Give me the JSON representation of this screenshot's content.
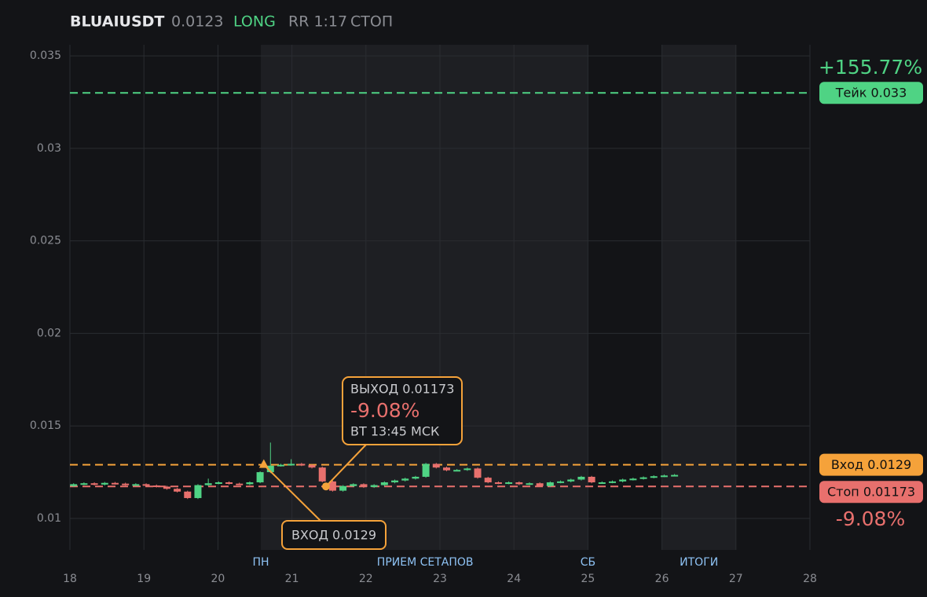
{
  "header": {
    "symbol": "BLUAIUSDT",
    "price": "0.0123",
    "side": "LONG",
    "rr": "RR 1:17",
    "status": "СТОП"
  },
  "chart_data": {
    "type": "candlestick",
    "xlim": [
      18,
      28
    ],
    "xticks": [
      18,
      19,
      20,
      21,
      22,
      23,
      24,
      25,
      26,
      27,
      28
    ],
    "ylim": [
      0.0083,
      0.0356
    ],
    "yticks": [
      0.01,
      0.015,
      0.02,
      0.025,
      0.03,
      0.035
    ],
    "grid": true,
    "shaded": [
      [
        20.58,
        25
      ],
      [
        26,
        27
      ]
    ],
    "sessions": [
      {
        "x": 20.58,
        "label": "ПН"
      },
      {
        "x": 22.8,
        "label": "ПРИЕМ СЕТАПОВ"
      },
      {
        "x": 25,
        "label": "СБ"
      },
      {
        "x": 26.5,
        "label": "ИТОГИ"
      }
    ],
    "up_color": "#4fd384",
    "down_color": "#e8706d",
    "x": [
      18.05,
      18.19,
      18.33,
      18.47,
      18.61,
      18.75,
      18.89,
      19.03,
      19.17,
      19.31,
      19.45,
      19.59,
      19.73,
      19.87,
      20.01,
      20.15,
      20.29,
      20.43,
      20.57,
      20.71,
      20.85,
      20.99,
      21.13,
      21.27,
      21.41,
      21.55,
      21.69,
      21.83,
      21.97,
      22.11,
      22.25,
      22.39,
      22.53,
      22.67,
      22.81,
      22.95,
      23.09,
      23.23,
      23.37,
      23.51,
      23.65,
      23.79,
      23.93,
      24.07,
      24.21,
      24.35,
      24.49,
      24.63,
      24.77,
      24.91,
      25.05,
      25.19,
      25.33,
      25.47,
      25.61,
      25.75,
      25.89,
      26.03,
      26.17
    ],
    "open": [
      0.01175,
      0.01185,
      0.0119,
      0.01183,
      0.01192,
      0.01188,
      0.01182,
      0.01185,
      0.01178,
      0.01172,
      0.0116,
      0.01145,
      0.0111,
      0.0118,
      0.0119,
      0.01195,
      0.01188,
      0.01185,
      0.01195,
      0.0125,
      0.01285,
      0.0129,
      0.01295,
      0.01288,
      0.01275,
      0.012,
      0.0115,
      0.01175,
      0.01185,
      0.0117,
      0.0118,
      0.01195,
      0.01205,
      0.01215,
      0.01225,
      0.01295,
      0.01275,
      0.0126,
      0.01262,
      0.0127,
      0.0122,
      0.01195,
      0.0119,
      0.01195,
      0.01185,
      0.0119,
      0.01175,
      0.01195,
      0.012,
      0.0121,
      0.01225,
      0.01195,
      0.01195,
      0.012,
      0.0121,
      0.01215,
      0.01222,
      0.01228,
      0.01232
    ],
    "high": [
      0.0119,
      0.01195,
      0.01195,
      0.01197,
      0.01197,
      0.01193,
      0.0119,
      0.0119,
      0.01183,
      0.01177,
      0.01165,
      0.0115,
      0.01185,
      0.01215,
      0.012,
      0.012,
      0.01193,
      0.012,
      0.01255,
      0.0141,
      0.01295,
      0.0132,
      0.013,
      0.01293,
      0.0128,
      0.01205,
      0.0118,
      0.0119,
      0.0119,
      0.01185,
      0.012,
      0.0121,
      0.0122,
      0.0123,
      0.013,
      0.013,
      0.0128,
      0.01267,
      0.01275,
      0.01275,
      0.01225,
      0.012,
      0.012,
      0.012,
      0.01195,
      0.01195,
      0.012,
      0.01205,
      0.01215,
      0.0123,
      0.0123,
      0.012,
      0.01205,
      0.01215,
      0.0122,
      0.01227,
      0.01233,
      0.01237,
      0.0124
    ],
    "low": [
      0.0117,
      0.0118,
      0.01178,
      0.01178,
      0.01183,
      0.01177,
      0.01177,
      0.01173,
      0.01167,
      0.01155,
      0.0114,
      0.01105,
      0.01105,
      0.01175,
      0.01185,
      0.01183,
      0.0118,
      0.0118,
      0.0119,
      0.01245,
      0.0128,
      0.01285,
      0.01283,
      0.0127,
      0.01195,
      0.01145,
      0.01145,
      0.0117,
      0.01165,
      0.01165,
      0.01175,
      0.0119,
      0.012,
      0.0121,
      0.0122,
      0.0127,
      0.01255,
      0.01255,
      0.01257,
      0.01215,
      0.0119,
      0.01185,
      0.01185,
      0.0118,
      0.0118,
      0.0117,
      0.0117,
      0.0119,
      0.01195,
      0.01205,
      0.0119,
      0.0119,
      0.0119,
      0.01195,
      0.01205,
      0.0121,
      0.01217,
      0.01223,
      0.01227
    ],
    "close": [
      0.01185,
      0.0119,
      0.01183,
      0.01192,
      0.01188,
      0.01182,
      0.01185,
      0.01178,
      0.01172,
      0.0116,
      0.01145,
      0.0111,
      0.0118,
      0.0119,
      0.01195,
      0.01188,
      0.01185,
      0.01195,
      0.0125,
      0.01285,
      0.0129,
      0.01295,
      0.01288,
      0.01275,
      0.012,
      0.0115,
      0.01175,
      0.01185,
      0.0117,
      0.0118,
      0.01195,
      0.01205,
      0.01215,
      0.01225,
      0.01295,
      0.01275,
      0.0126,
      0.01262,
      0.0127,
      0.0122,
      0.01195,
      0.0119,
      0.01195,
      0.01185,
      0.0119,
      0.01175,
      0.01195,
      0.012,
      0.0121,
      0.01225,
      0.01195,
      0.01195,
      0.012,
      0.0121,
      0.01215,
      0.01222,
      0.01228,
      0.01232,
      0.01235
    ],
    "levels": [
      {
        "value": 0.033,
        "label": "Тейк 0.033",
        "pct": "+155.77%",
        "color": "#4fd384"
      },
      {
        "value": 0.0129,
        "label": "Вход 0.0129",
        "color": "#f5a23a"
      },
      {
        "value": 0.01173,
        "label": "Стоп 0.01173",
        "pct": "-9.08%",
        "color": "#e8706d"
      }
    ],
    "entry": {
      "x": 20.62,
      "y": 0.0129,
      "label": "ВХОД 0.0129"
    },
    "exit": {
      "x": 21.46,
      "y": 0.01173,
      "label": "ВЫХОД 0.01173",
      "pct": "-9.08%",
      "time": "ВТ 13:45 МСК"
    }
  }
}
